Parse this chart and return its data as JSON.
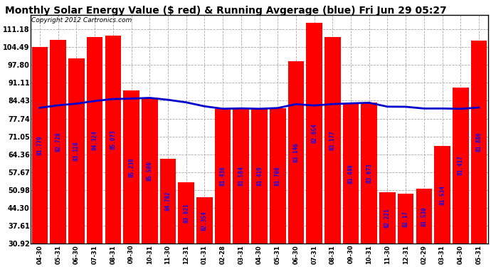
{
  "title": "Monthly Solar Energy Value ($ red) & Running Avgerage (blue) Fri Jun 29 05:27",
  "copyright": "Copyright 2012 Cartronics.com",
  "bar_color": "#ff0000",
  "line_color": "#0000cc",
  "bg_color": "#ffffff",
  "categories": [
    "04-30",
    "05-31",
    "06-30",
    "07-31",
    "08-31",
    "09-30",
    "10-31",
    "11-30",
    "12-31",
    "01-31",
    "02-28",
    "03-31",
    "04-30",
    "05-31",
    "06-30",
    "07-31",
    "08-31",
    "09-30",
    "10-31",
    "11-30",
    "12-31",
    "02-29",
    "03-31",
    "04-30",
    "05-31"
  ],
  "bar_values": [
    104.49,
    107.28,
    100.28,
    108.24,
    108.73,
    88.3,
    85.5,
    62.78,
    53.82,
    48.35,
    81.44,
    81.58,
    81.42,
    81.71,
    99.15,
    113.65,
    108.18,
    83.45,
    83.67,
    50.22,
    49.7,
    51.53,
    67.54,
    89.42,
    107.0
  ],
  "bar_labels": [
    "81.779",
    "82.728",
    "83.328",
    "84.324",
    "85.073",
    "85.230",
    "85.500",
    "84.782",
    "83.821",
    "82.354",
    "81.436",
    "81.584",
    "81.419",
    "81.708",
    "83.146",
    "82.654",
    "83.177",
    "83.449",
    "83.673",
    "82.221",
    "82.17",
    "81.530",
    "81.534",
    "81.417",
    "81.886"
  ],
  "running_avg": [
    81.779,
    82.728,
    83.328,
    84.324,
    85.073,
    85.23,
    85.5,
    84.782,
    83.821,
    82.354,
    81.436,
    81.584,
    81.419,
    81.708,
    83.146,
    82.654,
    83.177,
    83.449,
    83.673,
    82.221,
    82.17,
    81.53,
    81.534,
    81.417,
    81.886
  ],
  "ytick_values": [
    30.92,
    37.61,
    44.3,
    50.98,
    57.67,
    64.36,
    71.05,
    77.74,
    84.43,
    91.11,
    97.8,
    104.49,
    111.18
  ],
  "ymin": 30.92,
  "ymax": 116.5,
  "title_fontsize": 10,
  "copyright_fontsize": 6.5,
  "label_fontsize": 5.5,
  "xtick_fontsize": 6.0,
  "ytick_fontsize": 7.0
}
